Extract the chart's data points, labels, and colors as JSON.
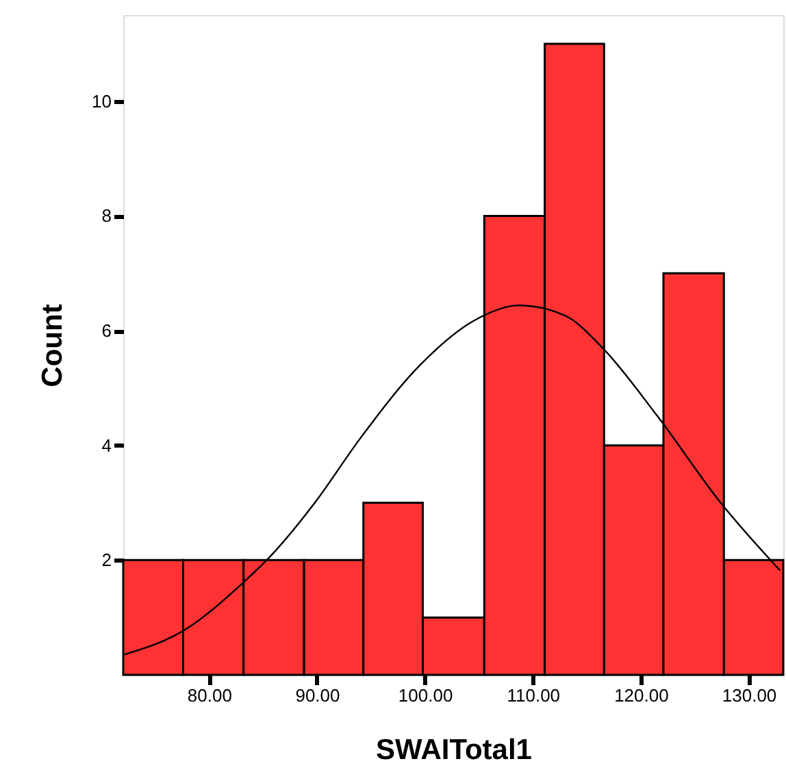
{
  "chart_data": {
    "type": "histogram",
    "xlabel": "SWAITotal1",
    "ylabel": "Count",
    "color": "#ff3333",
    "bins": [
      72.05,
      77.6,
      83.2,
      88.8,
      94.3,
      99.8,
      105.5,
      111.1,
      116.6,
      122.1,
      127.7,
      133.2
    ],
    "values": [
      2,
      2,
      2,
      2,
      3,
      1,
      8,
      11,
      4,
      7,
      2
    ],
    "series": [
      {
        "type": "line",
        "color": "#000000",
        "x": [
          72.05,
          77.8,
          83.0,
          85.6,
          89.8,
          94.0,
          99.5,
          104.6,
          108.8,
          113.0,
          116.4,
          121.5,
          127.4,
          132.9
        ],
        "values": [
          0.35,
          0.79,
          1.58,
          2.05,
          3.0,
          4.12,
          5.39,
          6.18,
          6.44,
          6.26,
          5.71,
          4.52,
          3.0,
          1.82
        ]
      }
    ],
    "xlim": [
      72.05,
      133.2
    ],
    "ylim": [
      0,
      11.5
    ],
    "xticks": [
      {
        "value": 80,
        "label": "80.00"
      },
      {
        "value": 90,
        "label": "90.00"
      },
      {
        "value": 100,
        "label": "100.00"
      },
      {
        "value": 110,
        "label": "110.00"
      },
      {
        "value": 120,
        "label": "120.00"
      },
      {
        "value": 130,
        "label": "130.00"
      }
    ],
    "yticks": [
      2,
      4,
      6,
      8,
      10
    ],
    "grid": false
  }
}
